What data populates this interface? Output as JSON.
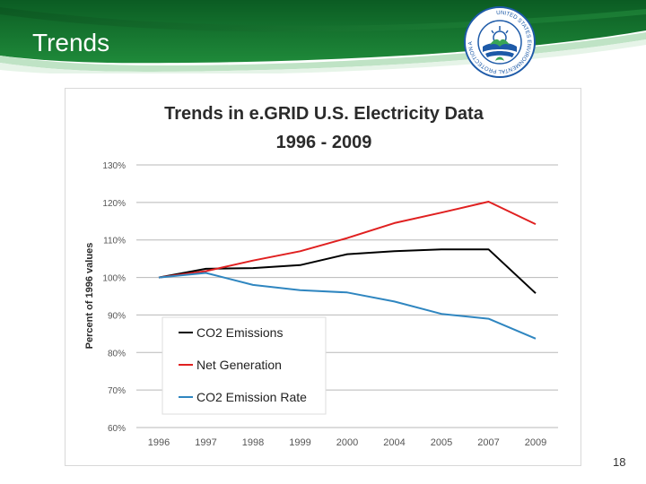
{
  "slide": {
    "title": "Trends",
    "page_number": "18",
    "logo_text": "UNITED STATES ENVIRONMENTAL PROTECTION AGENCY"
  },
  "colors": {
    "banner_dark": "#0b5c23",
    "banner_mid": "#1f8a3a",
    "banner_light": "#6cc27a",
    "logo_blue": "#1d5aa8",
    "logo_green": "#3aa655"
  },
  "chart_data": {
    "type": "line",
    "title_line1": "Trends in e.GRID U.S. Electricity Data",
    "title_line2": "1996 - 2009",
    "xlabel": "",
    "ylabel": "Percent of 1996 values",
    "categories": [
      "1996",
      "1997",
      "1998",
      "1999",
      "2000",
      "2004",
      "2005",
      "2007",
      "2009"
    ],
    "y_ticks": [
      "60%",
      "70%",
      "80%",
      "90%",
      "100%",
      "110%",
      "120%",
      "130%"
    ],
    "ylim": [
      60,
      130
    ],
    "grid": true,
    "legend_position": "bottom-left",
    "series": [
      {
        "name": "CO2 Emissions",
        "color": "#000000",
        "values": [
          100,
          102.3,
          102.5,
          103.3,
          106.2,
          107,
          107.5,
          107.5,
          95.8
        ]
      },
      {
        "name": "Net Generation",
        "color": "#e02020",
        "values": [
          100,
          101.7,
          104.5,
          107,
          110.5,
          114.5,
          117.3,
          120.2,
          114.2
        ]
      },
      {
        "name": "CO2 Emission Rate",
        "color": "#2f86c0",
        "values": [
          100,
          101.2,
          98,
          96.6,
          96,
          93.6,
          90.3,
          89,
          83.7
        ]
      }
    ]
  }
}
